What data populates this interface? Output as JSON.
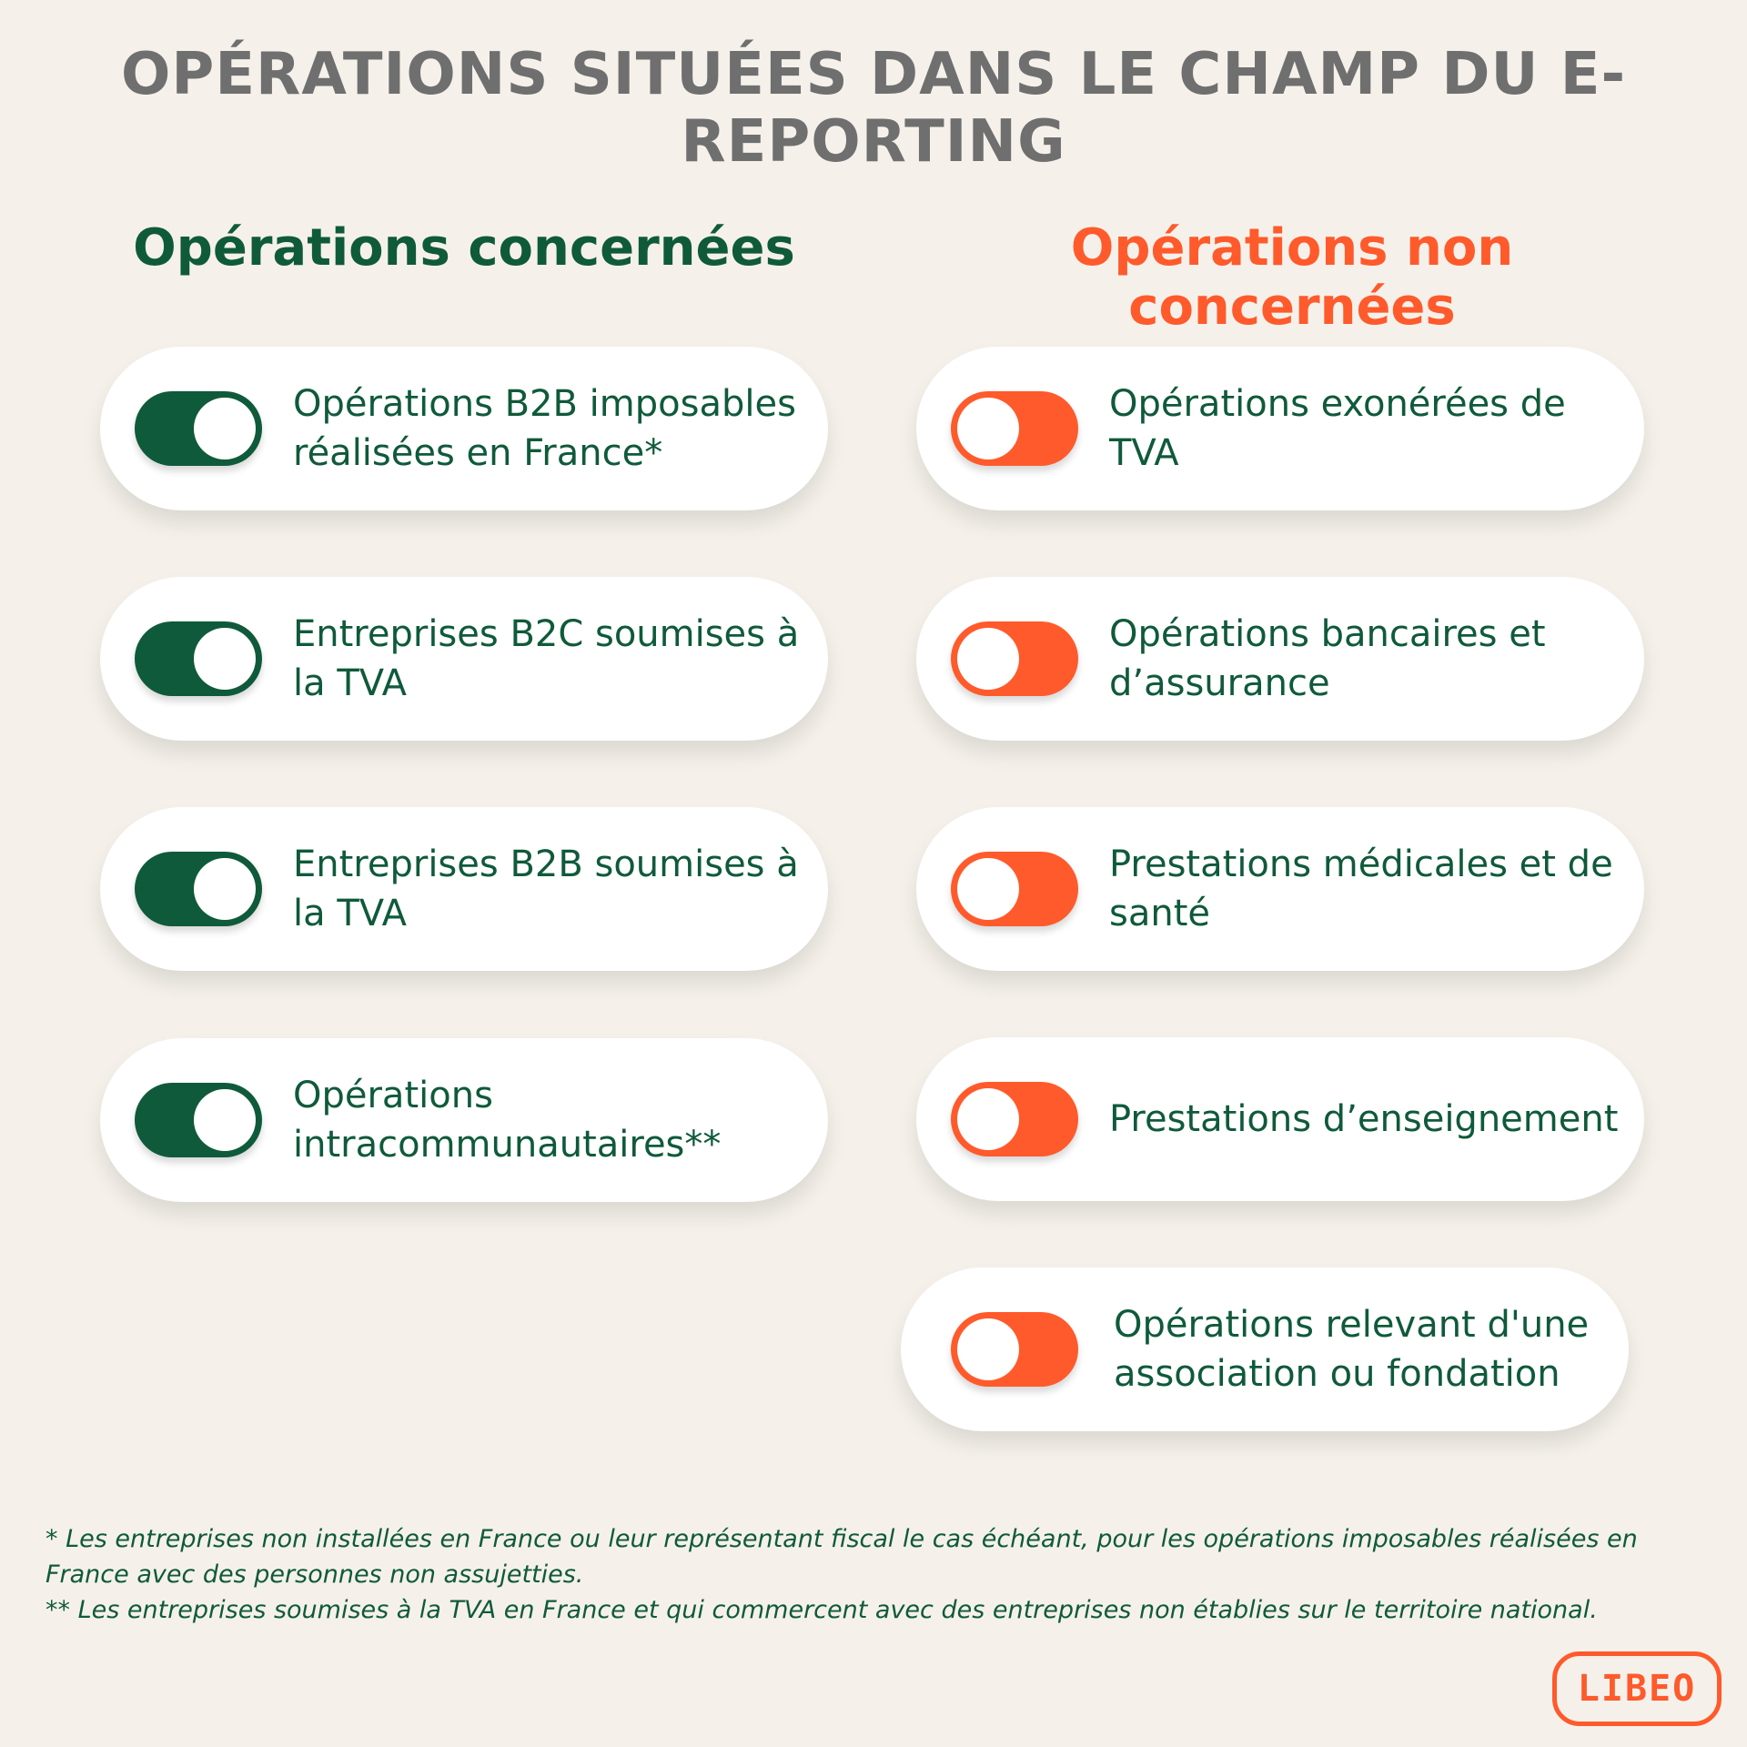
{
  "title": "OPÉRATIONS SITUÉES DANS LE CHAMP DU E-REPORTING",
  "columns": {
    "concerned": {
      "heading": "Opérations concernées",
      "accent_color": "#0f5a3a",
      "toggle_state": "on",
      "items": [
        {
          "label": "Opérations B2B imposables réalisées en France*"
        },
        {
          "label": "Entreprises B2C soumises à la TVA"
        },
        {
          "label": "Entreprises B2B soumises à la TVA"
        },
        {
          "label": "Opérations intracommunautaires**"
        }
      ]
    },
    "not_concerned": {
      "heading": "Opérations non concernées",
      "accent_color": "#ff5a2b",
      "toggle_state": "off",
      "items": [
        {
          "label": "Opérations exonérées de TVA"
        },
        {
          "label": "Opérations bancaires et d’assurance"
        },
        {
          "label": "Prestations médicales et de santé"
        },
        {
          "label": "Prestations d’enseignement"
        },
        {
          "label": "Opérations relevant d'une association ou fondation"
        }
      ]
    }
  },
  "footnotes": {
    "note1": "* Les entreprises non installées en France ou leur représentant fiscal le cas échéant, pour les opérations imposables réalisées en France avec des personnes non assujetties.",
    "note2": "** Les entreprises soumises à la TVA en France et qui commercent avec des entreprises non établies sur le territoire national."
  },
  "logo": {
    "text": "LIBEO"
  },
  "colors": {
    "background": "#f5f1ea",
    "title": "#6f6f6f",
    "green": "#0f5a3a",
    "orange": "#ff5a2b"
  }
}
